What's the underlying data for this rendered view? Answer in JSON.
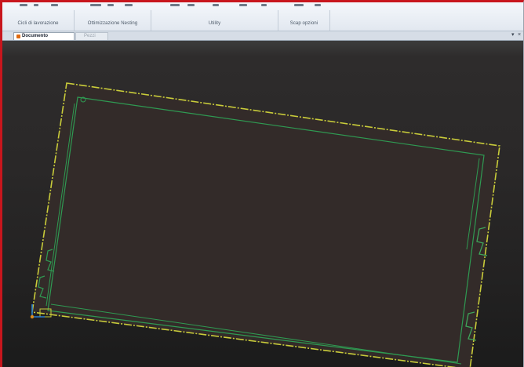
{
  "window": {
    "border_color": "#c8161d"
  },
  "ribbon": {
    "groups": [
      {
        "label": "Cicli di lavorazione"
      },
      {
        "label": "Ottimizzazione Nesting"
      },
      {
        "label": "Utility"
      },
      {
        "label": "Scap opzioni"
      }
    ]
  },
  "tabs": [
    {
      "label": "Documento",
      "active": true,
      "icon": "document-icon"
    },
    {
      "label": "Pezzi",
      "active": false
    }
  ],
  "window_controls": {
    "close": "×",
    "pin": "▾"
  },
  "viewport": {
    "background_top": "#3c3c3c",
    "background_bottom": "#1b1b1b",
    "sheet_fill": "#332b29",
    "outer_outline_color": "#c9cc3a",
    "inner_outline_color": "#2f9a52",
    "origin_marker_color": "#2a7fd1"
  }
}
